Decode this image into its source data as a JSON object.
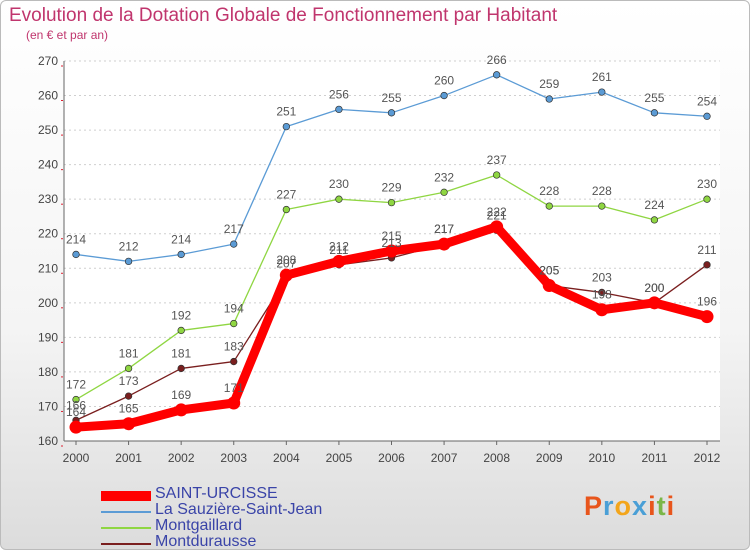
{
  "title": "Evolution de la Dotation Globale de Fonctionnement par Habitant",
  "subtitle": "(en € et par an)",
  "logo": {
    "letters": [
      "P",
      "r",
      "o",
      "x",
      "i",
      "t",
      "i"
    ],
    "colors": [
      "#e8551c",
      "#4a9fd6",
      "#f3a51b",
      "#4a9fd6",
      "#e8551c",
      "#7ab648",
      "#e8551c"
    ]
  },
  "chart_data": {
    "type": "line",
    "x": [
      "2000",
      "2001",
      "2002",
      "2003",
      "2004",
      "2005",
      "2006",
      "2007",
      "2008",
      "2009",
      "2010",
      "2011",
      "2012"
    ],
    "ylim": [
      160,
      270
    ],
    "yticks": [
      "160",
      "170",
      "180",
      "190",
      "200",
      "210",
      "220",
      "230",
      "240",
      "250",
      "260",
      "270"
    ],
    "series": [
      {
        "name": "SAINT-URCISSE",
        "color": "#ff0000",
        "values": [
          164,
          165,
          169,
          171,
          208,
          212,
          215,
          217,
          222,
          205,
          198,
          200,
          196
        ]
      },
      {
        "name": "La Sauzière-Saint-Jean",
        "color": "#5b9bd5",
        "values": [
          214,
          212,
          214,
          217,
          251,
          256,
          255,
          260,
          266,
          259,
          261,
          255,
          254
        ]
      },
      {
        "name": "Montgaillard",
        "color": "#8fd642",
        "values": [
          172,
          181,
          192,
          194,
          227,
          230,
          229,
          232,
          237,
          228,
          228,
          224,
          230
        ]
      },
      {
        "name": "Montdurausse",
        "color": "#7a1f1f",
        "values": [
          166,
          173,
          181,
          183,
          207,
          211,
          213,
          217,
          221,
          205,
          203,
          200,
          211
        ]
      }
    ]
  }
}
